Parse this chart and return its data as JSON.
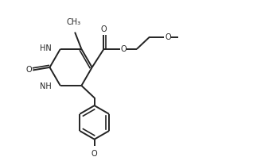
{
  "bg_color": "#ffffff",
  "line_color": "#222222",
  "line_width": 1.4,
  "font_size": 7.0,
  "figsize": [
    3.23,
    1.98
  ],
  "dpi": 100,
  "xlim": [
    0,
    10
  ],
  "ylim": [
    0,
    6.2
  ]
}
